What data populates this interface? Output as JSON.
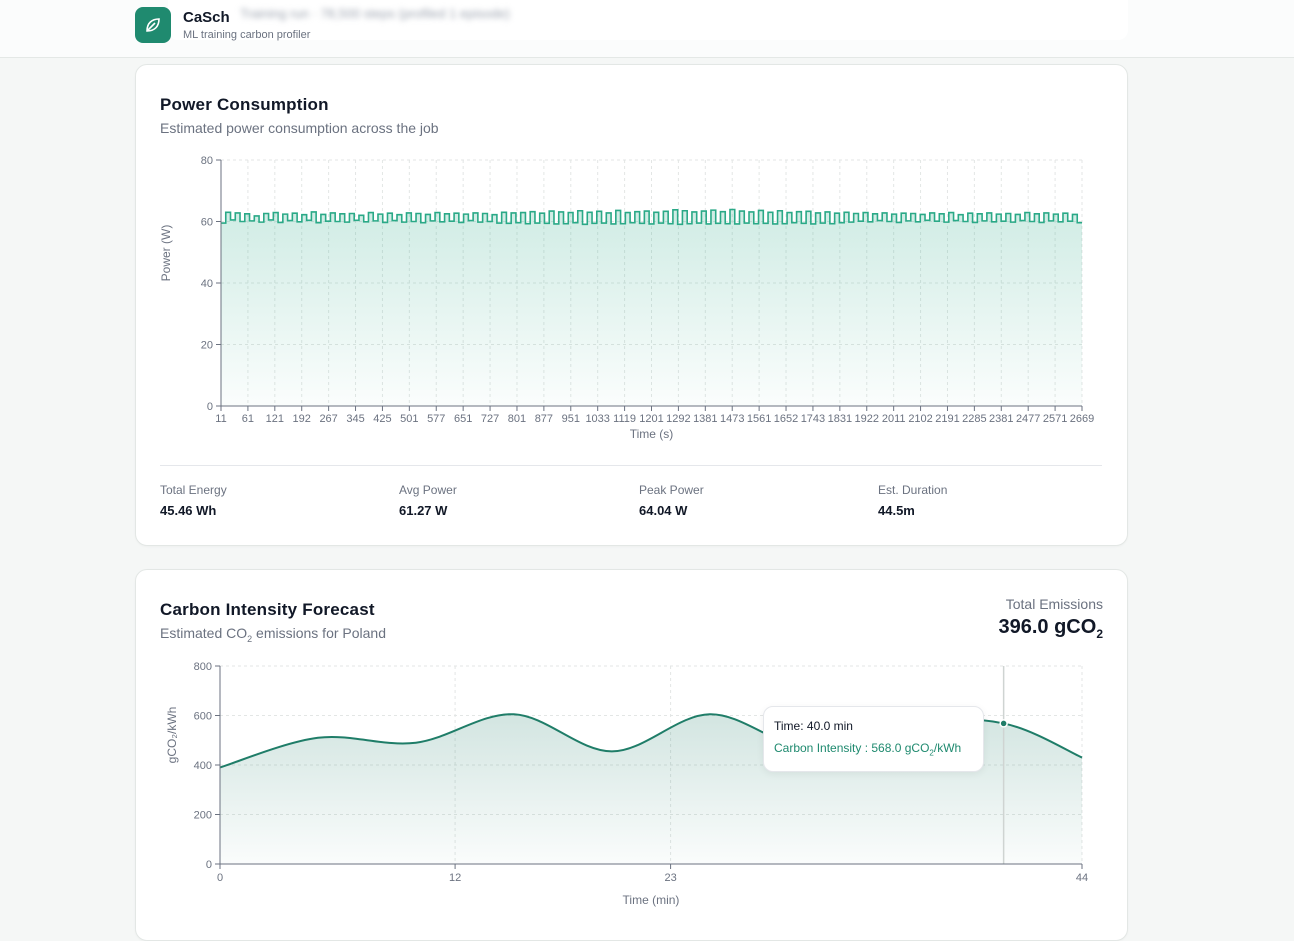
{
  "app": {
    "name": "CaSch",
    "subtitle": "ML training carbon profiler",
    "blurred_header": "Training run · 78,500 steps   (profiled 1 episode)"
  },
  "colors": {
    "accent": "#1f8a6f",
    "line_power": "#2aa987",
    "line_carbon": "#1f7d68",
    "grid": "#e3e6e5"
  },
  "power": {
    "title": "Power Consumption",
    "subtitle": "Estimated power consumption across the job",
    "stats": [
      {
        "label": "Total Energy",
        "value": "45.46 Wh"
      },
      {
        "label": "Avg Power",
        "value": "61.27 W"
      },
      {
        "label": "Peak Power",
        "value": "64.04 W"
      },
      {
        "label": "Est. Duration",
        "value": "44.5m"
      }
    ]
  },
  "carbon": {
    "title": "Carbon Intensity Forecast",
    "subtitle_prefix": "Estimated CO",
    "subtitle_sub": "2",
    "subtitle_suffix": " emissions for Poland",
    "total_label": "Total Emissions",
    "total_value_main": "396.0 gCO",
    "total_value_sub": "2",
    "tooltip": {
      "time_label": "Time: 40.0 min",
      "value_main": "Carbon Intensity : 568.0 gCO",
      "value_sub": "2",
      "value_suffix": "/kWh"
    }
  },
  "chart_data": [
    {
      "type": "area",
      "title": "",
      "xlabel": "Time (s)",
      "ylabel": "Power (W)",
      "ylim": [
        0,
        80
      ],
      "yticks": [
        0,
        20,
        40,
        60,
        80
      ],
      "xticklabels": [
        "11",
        "61",
        "121",
        "192",
        "267",
        "345",
        "425",
        "501",
        "577",
        "651",
        "727",
        "801",
        "877",
        "951",
        "1033",
        "1119",
        "1201",
        "1292",
        "1381",
        "1473",
        "1561",
        "1652",
        "1743",
        "1831",
        "1922",
        "2011",
        "2102",
        "2191",
        "2285",
        "2381",
        "2477",
        "2571",
        "2669"
      ],
      "grid": true,
      "step": true,
      "series": [
        {
          "values": [
            59.5,
            63.0,
            60.5,
            62.8,
            60.0,
            62.5,
            60.2,
            61.8,
            59.8,
            62.6,
            60.5,
            62.9,
            59.7,
            62.4,
            60.3,
            62.7,
            59.9,
            62.2,
            60.4,
            63.1,
            59.6,
            62.3,
            60.1,
            62.8,
            60.0,
            62.5,
            59.8,
            62.6,
            60.4,
            62.0,
            59.9,
            62.9,
            60.2,
            62.4,
            59.7,
            62.7,
            60.3,
            62.2,
            59.8,
            62.8,
            60.0,
            62.6,
            59.6,
            62.3,
            60.2,
            62.9,
            59.9,
            62.5,
            60.1,
            62.7,
            59.7,
            62.4,
            60.3,
            62.8,
            59.8,
            62.6,
            60.0,
            62.2,
            59.5,
            63.0,
            59.4,
            62.8,
            59.6,
            62.9,
            59.3,
            63.2,
            59.5,
            62.7,
            59.4,
            63.4,
            59.2,
            63.1,
            59.3,
            62.9,
            59.6,
            63.5,
            59.1,
            63.0,
            59.4,
            63.3,
            59.5,
            62.8,
            59.2,
            63.6,
            59.3,
            62.9,
            59.6,
            63.2,
            59.4,
            63.4,
            59.2,
            63.0,
            59.5,
            63.3,
            59.3,
            63.8,
            59.1,
            63.5,
            59.3,
            63.1,
            59.5,
            63.4,
            59.2,
            63.7,
            59.4,
            63.2,
            59.3,
            63.9,
            59.2,
            63.4,
            59.5,
            63.1,
            59.3,
            63.6,
            59.4,
            63.0,
            59.2,
            63.5,
            59.3,
            62.9,
            59.6,
            63.2,
            59.4,
            63.3,
            59.2,
            62.8,
            59.5,
            63.1,
            59.3,
            62.7,
            59.6,
            63.0,
            59.8,
            62.6,
            60.1,
            62.9,
            59.9,
            62.5,
            60.3,
            62.8,
            60.0,
            62.4,
            59.7,
            62.7,
            60.2,
            62.6,
            59.9,
            62.3,
            60.4,
            62.8,
            60.1,
            62.5,
            59.8,
            62.9,
            60.3,
            62.2,
            60.0,
            62.7,
            59.7,
            62.5,
            60.2,
            62.8,
            59.9,
            62.4,
            60.1,
            62.6,
            59.8,
            62.3,
            60.3,
            62.9,
            60.0,
            62.5,
            59.7,
            62.8,
            60.2,
            62.4,
            59.9,
            62.7,
            60.1,
            62.3,
            59.6
          ]
        }
      ]
    },
    {
      "type": "area",
      "title": "",
      "xlabel": "Time (min)",
      "ylabel": "gCO₂/kWh",
      "ylim": [
        0,
        800
      ],
      "yticks": [
        0,
        200,
        400,
        600,
        800
      ],
      "xlim": [
        0,
        44
      ],
      "xticks": [
        0,
        12,
        23,
        44
      ],
      "grid": true,
      "series": [
        {
          "x": [
            0,
            5,
            10,
            15,
            20,
            25,
            30,
            35,
            40,
            44
          ],
          "values": [
            390,
            510,
            490,
            605,
            455,
            605,
            470,
            575,
            568,
            430
          ]
        }
      ],
      "highlight": {
        "x": 40,
        "y": 568
      }
    }
  ]
}
